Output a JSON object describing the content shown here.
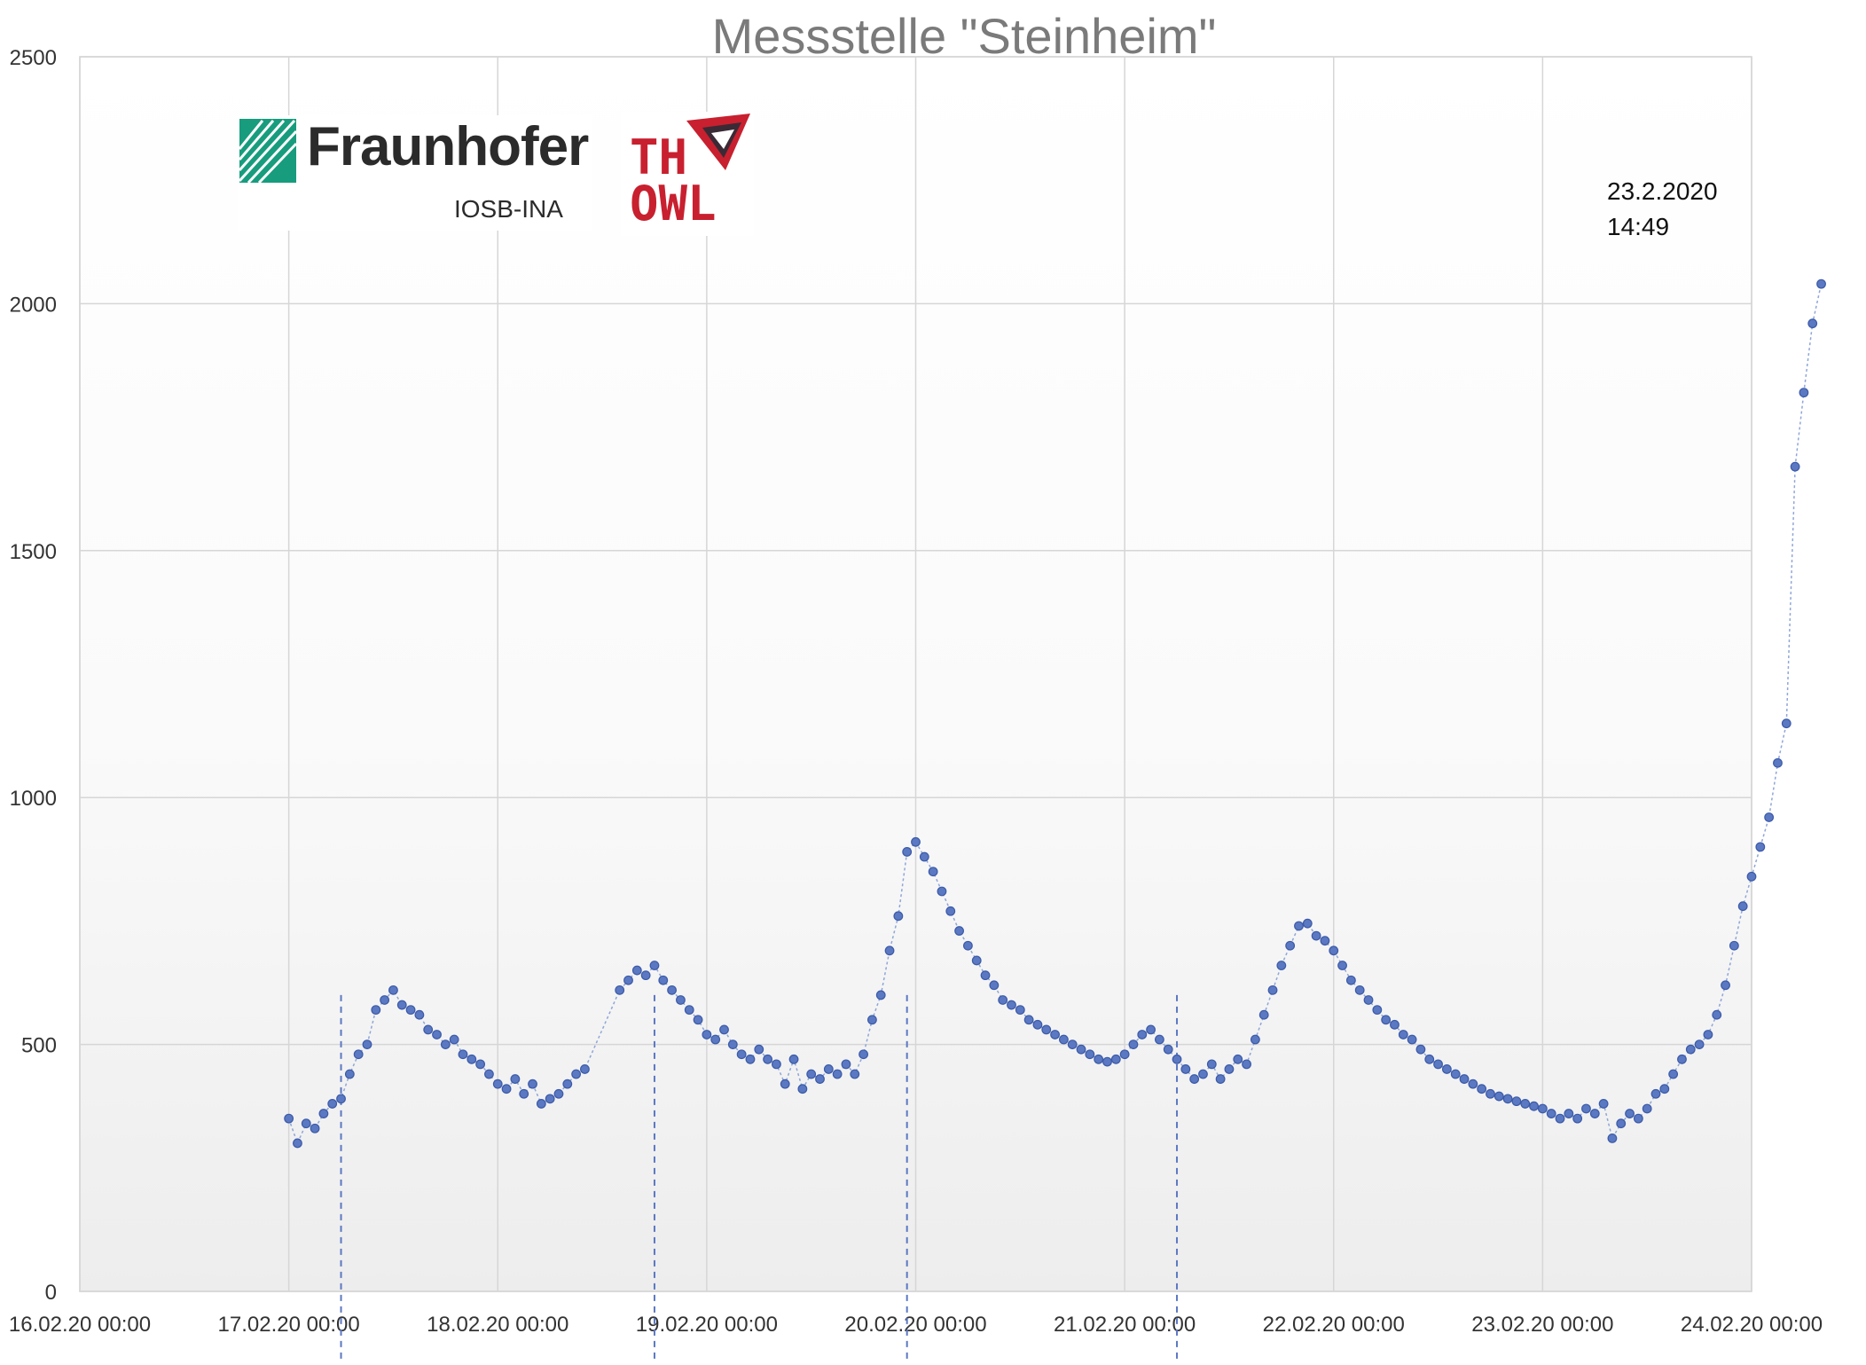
{
  "chart_data": {
    "type": "scatter",
    "title": "Messstelle \"Steinheim\"",
    "xlabel": "",
    "ylabel": "",
    "ylim": [
      0,
      2500
    ],
    "yticks": [
      0,
      500,
      1000,
      1500,
      2000,
      2500
    ],
    "xlim": [
      "2020-02-16 00:00",
      "2020-02-24 00:00"
    ],
    "xtick_labels": [
      "16.02.20 00:00",
      "17.02.20 00:00",
      "18.02.20 00:00",
      "19.02.20 00:00",
      "20.02.20 00:00",
      "21.02.20 00:00",
      "22.02.20 00:00",
      "23.02.20 00:00",
      "24.02.20 00:00"
    ],
    "grid": true,
    "legend": "none",
    "marker_color": "#5b78c2",
    "line_color": "#8fa6d8",
    "annotation": {
      "line1": "23.2.2020",
      "line2": "14:49"
    },
    "series": [
      {
        "points": [
          [
            "2020-02-17 00:00",
            350
          ],
          [
            "2020-02-17 01:00",
            300
          ],
          [
            "2020-02-17 02:00",
            340
          ],
          [
            "2020-02-17 03:00",
            330
          ],
          [
            "2020-02-17 04:00",
            360
          ],
          [
            "2020-02-17 05:00",
            380
          ],
          [
            "2020-02-17 06:00",
            390
          ],
          [
            "2020-02-17 07:00",
            440
          ],
          [
            "2020-02-17 08:00",
            480
          ],
          [
            "2020-02-17 09:00",
            500
          ],
          [
            "2020-02-17 10:00",
            570
          ],
          [
            "2020-02-17 11:00",
            590
          ],
          [
            "2020-02-17 12:00",
            610
          ],
          [
            "2020-02-17 13:00",
            580
          ],
          [
            "2020-02-17 14:00",
            570
          ],
          [
            "2020-02-17 15:00",
            560
          ],
          [
            "2020-02-17 16:00",
            530
          ],
          [
            "2020-02-17 17:00",
            520
          ],
          [
            "2020-02-17 18:00",
            500
          ],
          [
            "2020-02-17 19:00",
            510
          ],
          [
            "2020-02-17 20:00",
            480
          ],
          [
            "2020-02-17 21:00",
            470
          ],
          [
            "2020-02-17 22:00",
            460
          ],
          [
            "2020-02-17 23:00",
            440
          ],
          [
            "2020-02-18 00:00",
            420
          ],
          [
            "2020-02-18 01:00",
            410
          ],
          [
            "2020-02-18 02:00",
            430
          ],
          [
            "2020-02-18 03:00",
            400
          ],
          [
            "2020-02-18 04:00",
            420
          ],
          [
            "2020-02-18 05:00",
            380
          ],
          [
            "2020-02-18 06:00",
            390
          ],
          [
            "2020-02-18 07:00",
            400
          ],
          [
            "2020-02-18 08:00",
            420
          ],
          [
            "2020-02-18 09:00",
            440
          ],
          [
            "2020-02-18 10:00",
            450
          ],
          [
            "2020-02-18 14:00",
            610
          ],
          [
            "2020-02-18 15:00",
            630
          ],
          [
            "2020-02-18 16:00",
            650
          ],
          [
            "2020-02-18 17:00",
            640
          ],
          [
            "2020-02-18 18:00",
            660
          ],
          [
            "2020-02-18 19:00",
            630
          ],
          [
            "2020-02-18 20:00",
            610
          ],
          [
            "2020-02-18 21:00",
            590
          ],
          [
            "2020-02-18 22:00",
            570
          ],
          [
            "2020-02-18 23:00",
            550
          ],
          [
            "2020-02-19 00:00",
            520
          ],
          [
            "2020-02-19 01:00",
            510
          ],
          [
            "2020-02-19 02:00",
            530
          ],
          [
            "2020-02-19 03:00",
            500
          ],
          [
            "2020-02-19 04:00",
            480
          ],
          [
            "2020-02-19 05:00",
            470
          ],
          [
            "2020-02-19 06:00",
            490
          ],
          [
            "2020-02-19 07:00",
            470
          ],
          [
            "2020-02-19 08:00",
            460
          ],
          [
            "2020-02-19 09:00",
            420
          ],
          [
            "2020-02-19 10:00",
            470
          ],
          [
            "2020-02-19 11:00",
            410
          ],
          [
            "2020-02-19 12:00",
            440
          ],
          [
            "2020-02-19 13:00",
            430
          ],
          [
            "2020-02-19 14:00",
            450
          ],
          [
            "2020-02-19 15:00",
            440
          ],
          [
            "2020-02-19 16:00",
            460
          ],
          [
            "2020-02-19 17:00",
            440
          ],
          [
            "2020-02-19 18:00",
            480
          ],
          [
            "2020-02-19 19:00",
            550
          ],
          [
            "2020-02-19 20:00",
            600
          ],
          [
            "2020-02-19 21:00",
            690
          ],
          [
            "2020-02-19 22:00",
            760
          ],
          [
            "2020-02-19 23:00",
            890
          ],
          [
            "2020-02-20 00:00",
            910
          ],
          [
            "2020-02-20 01:00",
            880
          ],
          [
            "2020-02-20 02:00",
            850
          ],
          [
            "2020-02-20 03:00",
            810
          ],
          [
            "2020-02-20 04:00",
            770
          ],
          [
            "2020-02-20 05:00",
            730
          ],
          [
            "2020-02-20 06:00",
            700
          ],
          [
            "2020-02-20 07:00",
            670
          ],
          [
            "2020-02-20 08:00",
            640
          ],
          [
            "2020-02-20 09:00",
            620
          ],
          [
            "2020-02-20 10:00",
            590
          ],
          [
            "2020-02-20 11:00",
            580
          ],
          [
            "2020-02-20 12:00",
            570
          ],
          [
            "2020-02-20 13:00",
            550
          ],
          [
            "2020-02-20 14:00",
            540
          ],
          [
            "2020-02-20 15:00",
            530
          ],
          [
            "2020-02-20 16:00",
            520
          ],
          [
            "2020-02-20 17:00",
            510
          ],
          [
            "2020-02-20 18:00",
            500
          ],
          [
            "2020-02-20 19:00",
            490
          ],
          [
            "2020-02-20 20:00",
            480
          ],
          [
            "2020-02-20 21:00",
            470
          ],
          [
            "2020-02-20 22:00",
            465
          ],
          [
            "2020-02-20 23:00",
            470
          ],
          [
            "2020-02-21 00:00",
            480
          ],
          [
            "2020-02-21 01:00",
            500
          ],
          [
            "2020-02-21 02:00",
            520
          ],
          [
            "2020-02-21 03:00",
            530
          ],
          [
            "2020-02-21 04:00",
            510
          ],
          [
            "2020-02-21 05:00",
            490
          ],
          [
            "2020-02-21 06:00",
            470
          ],
          [
            "2020-02-21 07:00",
            450
          ],
          [
            "2020-02-21 08:00",
            430
          ],
          [
            "2020-02-21 09:00",
            440
          ],
          [
            "2020-02-21 10:00",
            460
          ],
          [
            "2020-02-21 11:00",
            430
          ],
          [
            "2020-02-21 12:00",
            450
          ],
          [
            "2020-02-21 13:00",
            470
          ],
          [
            "2020-02-21 14:00",
            460
          ],
          [
            "2020-02-21 15:00",
            510
          ],
          [
            "2020-02-21 16:00",
            560
          ],
          [
            "2020-02-21 17:00",
            610
          ],
          [
            "2020-02-21 18:00",
            660
          ],
          [
            "2020-02-21 19:00",
            700
          ],
          [
            "2020-02-21 20:00",
            740
          ],
          [
            "2020-02-21 21:00",
            745
          ],
          [
            "2020-02-21 22:00",
            720
          ],
          [
            "2020-02-21 23:00",
            710
          ],
          [
            "2020-02-22 00:00",
            690
          ],
          [
            "2020-02-22 01:00",
            660
          ],
          [
            "2020-02-22 02:00",
            630
          ],
          [
            "2020-02-22 03:00",
            610
          ],
          [
            "2020-02-22 04:00",
            590
          ],
          [
            "2020-02-22 05:00",
            570
          ],
          [
            "2020-02-22 06:00",
            550
          ],
          [
            "2020-02-22 07:00",
            540
          ],
          [
            "2020-02-22 08:00",
            520
          ],
          [
            "2020-02-22 09:00",
            510
          ],
          [
            "2020-02-22 10:00",
            490
          ],
          [
            "2020-02-22 11:00",
            470
          ],
          [
            "2020-02-22 12:00",
            460
          ],
          [
            "2020-02-22 13:00",
            450
          ],
          [
            "2020-02-22 14:00",
            440
          ],
          [
            "2020-02-22 15:00",
            430
          ],
          [
            "2020-02-22 16:00",
            420
          ],
          [
            "2020-02-22 17:00",
            410
          ],
          [
            "2020-02-22 18:00",
            400
          ],
          [
            "2020-02-22 19:00",
            395
          ],
          [
            "2020-02-22 20:00",
            390
          ],
          [
            "2020-02-22 21:00",
            385
          ],
          [
            "2020-02-22 22:00",
            380
          ],
          [
            "2020-02-22 23:00",
            375
          ],
          [
            "2020-02-23 00:00",
            370
          ],
          [
            "2020-02-23 01:00",
            360
          ],
          [
            "2020-02-23 02:00",
            350
          ],
          [
            "2020-02-23 03:00",
            360
          ],
          [
            "2020-02-23 04:00",
            350
          ],
          [
            "2020-02-23 05:00",
            370
          ],
          [
            "2020-02-23 06:00",
            360
          ],
          [
            "2020-02-23 07:00",
            380
          ],
          [
            "2020-02-23 08:00",
            310
          ],
          [
            "2020-02-23 09:00",
            340
          ],
          [
            "2020-02-23 10:00",
            360
          ],
          [
            "2020-02-23 11:00",
            350
          ],
          [
            "2020-02-23 12:00",
            370
          ],
          [
            "2020-02-23 13:00",
            400
          ],
          [
            "2020-02-23 14:00",
            410
          ],
          [
            "2020-02-23 15:00",
            440
          ],
          [
            "2020-02-23 16:00",
            470
          ],
          [
            "2020-02-23 17:00",
            490
          ],
          [
            "2020-02-23 18:00",
            500
          ],
          [
            "2020-02-23 19:00",
            520
          ],
          [
            "2020-02-23 20:00",
            560
          ],
          [
            "2020-02-23 21:00",
            620
          ],
          [
            "2020-02-23 22:00",
            700
          ],
          [
            "2020-02-23 23:00",
            780
          ],
          [
            "2020-02-24 00:00",
            840
          ],
          [
            "2020-02-24 01:00",
            900
          ],
          [
            "2020-02-24 02:00",
            960
          ],
          [
            "2020-02-24 03:00",
            1070
          ],
          [
            "2020-02-24 04:00",
            1150
          ],
          [
            "2020-02-24 05:00",
            1670
          ],
          [
            "2020-02-24 06:00",
            1820
          ],
          [
            "2020-02-24 07:00",
            1960
          ],
          [
            "2020-02-24 08:00",
            2040
          ]
        ]
      }
    ],
    "vertical_markers": [
      "2020-02-17 06:00",
      "2020-02-18 18:00",
      "2020-02-19 23:00",
      "2020-02-21 06:00"
    ]
  },
  "logos": {
    "fraunhofer": {
      "name": "Fraunhofer",
      "sub": "IOSB-INA",
      "color": "#179c7d"
    },
    "thowl": {
      "line1": "TH",
      "line2": "OWL",
      "color": "#c8202f"
    }
  }
}
